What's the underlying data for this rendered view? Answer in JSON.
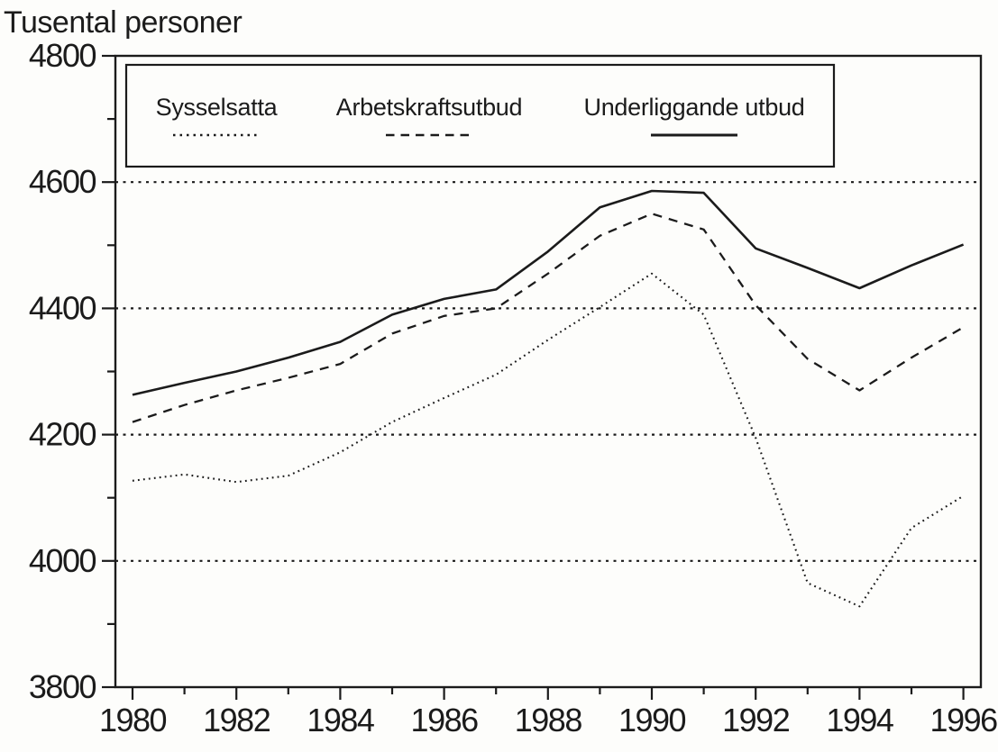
{
  "chart_data": {
    "type": "line",
    "title": "Tusental personer",
    "xlabel": "",
    "ylabel": "Tusental personer",
    "xlim": [
      1980,
      1996
    ],
    "ylim": [
      3800,
      4800
    ],
    "grid": "horizontal-dotted",
    "gridlines": [
      4000,
      4200,
      4400,
      4600
    ],
    "legend_position": "top-inside",
    "x_axis": {
      "min": 1980,
      "max": 1996,
      "tick_step": 1,
      "label_step": 2,
      "labels": [
        "1980",
        "1982",
        "1984",
        "1986",
        "1988",
        "1990",
        "1992",
        "1994",
        "1996"
      ]
    },
    "y_axis": {
      "min": 3800,
      "max": 4800,
      "major_step": 200,
      "minor_step": 100,
      "labels": [
        "3800",
        "4000",
        "4200",
        "4400",
        "4600",
        "4800"
      ]
    },
    "x": [
      1980,
      1981,
      1982,
      1983,
      1984,
      1985,
      1986,
      1987,
      1988,
      1989,
      1990,
      1991,
      1992,
      1993,
      1994,
      1995,
      1996
    ],
    "series": [
      {
        "name": "Sysselsatta",
        "style": "dotted",
        "values": [
          4127,
          4137,
          4125,
          4135,
          4172,
          4220,
          4258,
          4295,
          4350,
          4402,
          4455,
          4390,
          4195,
          3965,
          3928,
          4052,
          4103
        ]
      },
      {
        "name": "Arbetskraftsutbud",
        "style": "dashed",
        "values": [
          4220,
          4247,
          4270,
          4290,
          4312,
          4360,
          4388,
          4400,
          4455,
          4515,
          4550,
          4525,
          4405,
          4320,
          4270,
          4322,
          4370
        ]
      },
      {
        "name": "Underliggande utbud",
        "style": "solid",
        "values": [
          4263,
          4282,
          4300,
          4322,
          4347,
          4390,
          4415,
          4430,
          4490,
          4560,
          4586,
          4583,
          4495,
          4464,
          4432,
          4468,
          4501
        ]
      }
    ]
  },
  "colors": {
    "ink": "#1b1b1b",
    "paper": "#fdfdfb"
  }
}
